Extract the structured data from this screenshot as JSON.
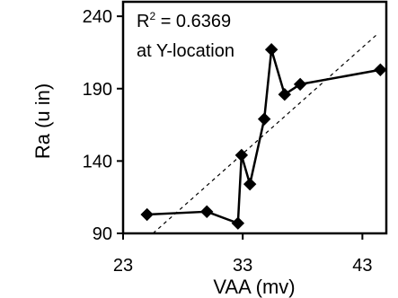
{
  "chart_data": {
    "type": "line",
    "title": "",
    "xlabel": "VAA (mv)",
    "ylabel": "Ra (u in)",
    "xlim": [
      23,
      45
    ],
    "ylim": [
      90,
      250
    ],
    "xticks": [
      23,
      33,
      43
    ],
    "yticks": [
      90,
      140,
      190,
      240
    ],
    "grid": false,
    "legend": "none",
    "annotations": {
      "r2_prefix": "R",
      "r2_sup": "2",
      "r2_value": " = 0.6369",
      "location": "at Y-location"
    },
    "series": [
      {
        "x": [
          25,
          30,
          32.6,
          32.9,
          33.6,
          34.8,
          35.4,
          36.5,
          37.8,
          44.5
        ],
        "y": [
          103,
          105,
          97,
          144,
          124,
          169,
          217,
          186,
          193,
          203
        ],
        "marker": "diamond",
        "color": "#000000"
      }
    ],
    "trendline": {
      "style": "dashed",
      "x": [
        25.5,
        44.3
      ],
      "y": [
        90,
        228
      ]
    }
  }
}
